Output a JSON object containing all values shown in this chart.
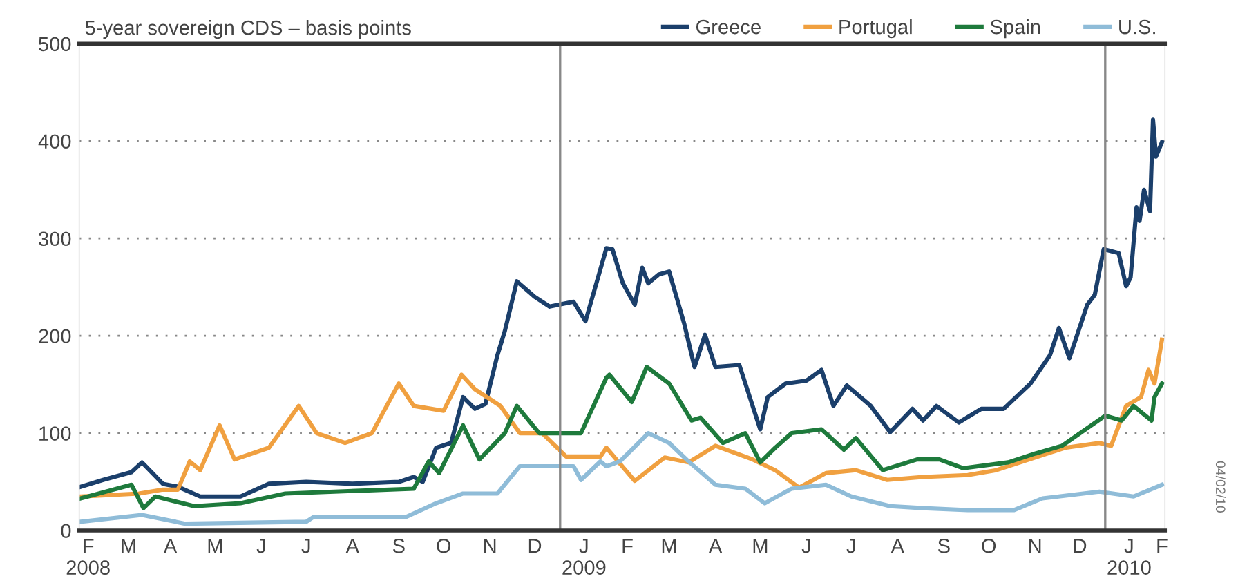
{
  "chart_data": {
    "type": "line",
    "title": "5-year sovereign CDS – basis points",
    "annotations": [
      "04/02/10"
    ],
    "xlim": [
      "2008-02-14",
      "2010-02-10"
    ],
    "xticks": [
      {
        "value": "2008-02-20",
        "label": "F\n2008"
      },
      {
        "value": "2008-03-18",
        "label": "M"
      },
      {
        "value": "2008-04-15",
        "label": "A"
      },
      {
        "value": "2008-05-15",
        "label": "M"
      },
      {
        "value": "2008-06-15",
        "label": "J"
      },
      {
        "value": "2008-07-15",
        "label": "J"
      },
      {
        "value": "2008-08-15",
        "label": "A"
      },
      {
        "value": "2008-09-15",
        "label": "S"
      },
      {
        "value": "2008-10-15",
        "label": "O"
      },
      {
        "value": "2008-11-15",
        "label": "N"
      },
      {
        "value": "2008-12-15",
        "label": "D"
      },
      {
        "value": "2009-01-17",
        "label": "J\n2009"
      },
      {
        "value": "2009-02-15",
        "label": "F"
      },
      {
        "value": "2009-03-15",
        "label": "M"
      },
      {
        "value": "2009-04-15",
        "label": "A"
      },
      {
        "value": "2009-05-15",
        "label": "M"
      },
      {
        "value": "2009-06-15",
        "label": "J"
      },
      {
        "value": "2009-07-15",
        "label": "J"
      },
      {
        "value": "2009-08-15",
        "label": "A"
      },
      {
        "value": "2009-09-15",
        "label": "S"
      },
      {
        "value": "2009-10-15",
        "label": "O"
      },
      {
        "value": "2009-11-15",
        "label": "N"
      },
      {
        "value": "2009-12-15",
        "label": "D"
      },
      {
        "value": "2010-01-17",
        "label": "J\n2010"
      },
      {
        "value": "2010-02-08",
        "label": "F"
      }
    ],
    "ylim": [
      0,
      500
    ],
    "yticks": [
      0,
      100,
      200,
      300,
      400,
      500
    ],
    "grid": "y",
    "legend": "top right",
    "line_style": "solid",
    "ref_lines": [
      {
        "axis": "x",
        "value": "2009-01-01",
        "color": "#888888"
      },
      {
        "axis": "x",
        "value": "2010-01-01",
        "color": "#888888"
      }
    ],
    "series": [
      {
        "name": "Greece",
        "color": "#1b3f6b",
        "x": [
          "2008-02-15",
          "2008-03-01",
          "2008-03-20",
          "2008-03-27",
          "2008-04-10",
          "2008-04-20",
          "2008-05-05",
          "2008-06-01",
          "2008-06-20",
          "2008-07-15",
          "2008-08-15",
          "2008-09-15",
          "2008-09-25",
          "2008-10-01",
          "2008-10-10",
          "2008-10-20",
          "2008-10-28",
          "2008-11-05",
          "2008-11-12",
          "2008-11-20",
          "2008-11-25",
          "2008-12-03",
          "2008-12-15",
          "2008-12-25",
          "2009-01-10",
          "2009-01-18",
          "2009-02-01",
          "2009-02-05",
          "2009-02-12",
          "2009-02-20",
          "2009-02-25",
          "2009-03-01",
          "2009-03-08",
          "2009-03-15",
          "2009-03-25",
          "2009-04-01",
          "2009-04-08",
          "2009-04-15",
          "2009-05-01",
          "2009-05-15",
          "2009-05-20",
          "2009-06-01",
          "2009-06-15",
          "2009-06-25",
          "2009-07-03",
          "2009-07-12",
          "2009-07-28",
          "2009-08-10",
          "2009-08-25",
          "2009-09-01",
          "2009-09-10",
          "2009-09-25",
          "2009-10-10",
          "2009-10-25",
          "2009-11-12",
          "2009-11-25",
          "2009-12-01",
          "2009-12-08",
          "2009-12-20",
          "2009-12-25",
          "2009-12-31",
          "2010-01-10",
          "2010-01-15",
          "2010-01-18",
          "2010-01-22",
          "2010-01-24",
          "2010-01-27",
          "2010-01-31",
          "2010-02-02",
          "2010-02-04",
          "2010-02-08"
        ],
        "values": [
          45,
          52,
          60,
          70,
          48,
          45,
          35,
          35,
          48,
          50,
          48,
          50,
          55,
          50,
          85,
          90,
          137,
          125,
          130,
          180,
          205,
          256,
          240,
          230,
          235,
          215,
          290,
          289,
          254,
          232,
          270,
          254,
          263,
          266,
          213,
          168,
          201,
          168,
          170,
          104,
          137,
          151,
          154,
          165,
          128,
          149,
          128,
          101,
          125,
          113,
          128,
          111,
          125,
          125,
          151,
          180,
          208,
          177,
          232,
          242,
          289,
          285,
          251,
          260,
          332,
          318,
          350,
          328,
          422,
          384,
          399
        ]
      },
      {
        "name": "Portugal",
        "color": "#f0a040",
        "x": [
          "2008-02-15",
          "2008-03-25",
          "2008-04-10",
          "2008-04-20",
          "2008-04-28",
          "2008-05-05",
          "2008-05-18",
          "2008-05-28",
          "2008-06-20",
          "2008-07-10",
          "2008-07-22",
          "2008-08-10",
          "2008-08-28",
          "2008-09-15",
          "2008-09-25",
          "2008-10-15",
          "2008-10-27",
          "2008-11-05",
          "2008-11-22",
          "2008-12-05",
          "2008-12-20",
          "2009-01-05",
          "2009-01-28",
          "2009-02-01",
          "2009-02-20",
          "2009-03-12",
          "2009-03-28",
          "2009-04-15",
          "2009-05-10",
          "2009-05-25",
          "2009-06-10",
          "2009-06-28",
          "2009-07-18",
          "2009-08-08",
          "2009-09-01",
          "2009-10-01",
          "2009-10-20",
          "2009-11-15",
          "2009-12-05",
          "2009-12-28",
          "2010-01-05",
          "2010-01-15",
          "2010-01-25",
          "2010-01-30",
          "2010-02-03",
          "2010-02-08"
        ],
        "values": [
          35,
          38,
          42,
          42,
          71,
          62,
          108,
          73,
          85,
          128,
          100,
          90,
          100,
          151,
          128,
          123,
          160,
          145,
          128,
          100,
          100,
          76,
          76,
          85,
          51,
          75,
          70,
          87,
          73,
          62,
          44,
          59,
          62,
          52,
          55,
          57,
          62,
          75,
          85,
          90,
          87,
          128,
          137,
          165,
          151,
          196
        ]
      },
      {
        "name": "Spain",
        "color": "#1e7a3c",
        "x": [
          "2008-02-15",
          "2008-03-20",
          "2008-03-28",
          "2008-04-05",
          "2008-05-01",
          "2008-06-01",
          "2008-07-01",
          "2008-09-25",
          "2008-10-05",
          "2008-10-12",
          "2008-10-28",
          "2008-11-08",
          "2008-11-25",
          "2008-12-03",
          "2008-12-18",
          "2009-01-15",
          "2009-02-01",
          "2009-02-03",
          "2009-02-18",
          "2009-02-28",
          "2009-03-15",
          "2009-03-30",
          "2009-04-05",
          "2009-04-20",
          "2009-05-05",
          "2009-05-15",
          "2009-05-25",
          "2009-06-05",
          "2009-06-25",
          "2009-07-10",
          "2009-07-18",
          "2009-08-05",
          "2009-08-28",
          "2009-09-12",
          "2009-09-28",
          "2009-10-28",
          "2009-11-15",
          "2009-12-03",
          "2010-01-01",
          "2010-01-12",
          "2010-01-20",
          "2010-02-01",
          "2010-02-03",
          "2010-02-08"
        ],
        "values": [
          33,
          47,
          23,
          35,
          25,
          28,
          38,
          43,
          71,
          59,
          108,
          73,
          100,
          128,
          100,
          100,
          157,
          160,
          132,
          168,
          151,
          113,
          116,
          90,
          100,
          70,
          85,
          100,
          104,
          83,
          95,
          62,
          73,
          73,
          64,
          70,
          79,
          87,
          118,
          113,
          128,
          113,
          137,
          151
        ]
      },
      {
        "name": "U.S.",
        "color": "#8fbcd8",
        "x": [
          "2008-02-15",
          "2008-03-27",
          "2008-04-25",
          "2008-07-15",
          "2008-07-20",
          "2008-09-20",
          "2008-10-10",
          "2008-10-28",
          "2008-11-20",
          "2008-12-05",
          "2009-01-10",
          "2009-01-15",
          "2009-01-28",
          "2009-02-01",
          "2009-02-10",
          "2009-02-18",
          "2009-03-01",
          "2009-03-15",
          "2009-03-28",
          "2009-04-15",
          "2009-05-05",
          "2009-05-18",
          "2009-06-05",
          "2009-06-28",
          "2009-07-15",
          "2009-08-10",
          "2009-09-01",
          "2009-10-01",
          "2009-11-01",
          "2009-11-20",
          "2009-12-28",
          "2010-01-20",
          "2010-02-08"
        ],
        "values": [
          9,
          16,
          7,
          9,
          14,
          14,
          28,
          38,
          38,
          66,
          66,
          52,
          71,
          66,
          71,
          83,
          100,
          90,
          71,
          47,
          43,
          28,
          43,
          47,
          35,
          25,
          23,
          21,
          21,
          33,
          40,
          35,
          47
        ]
      }
    ]
  }
}
